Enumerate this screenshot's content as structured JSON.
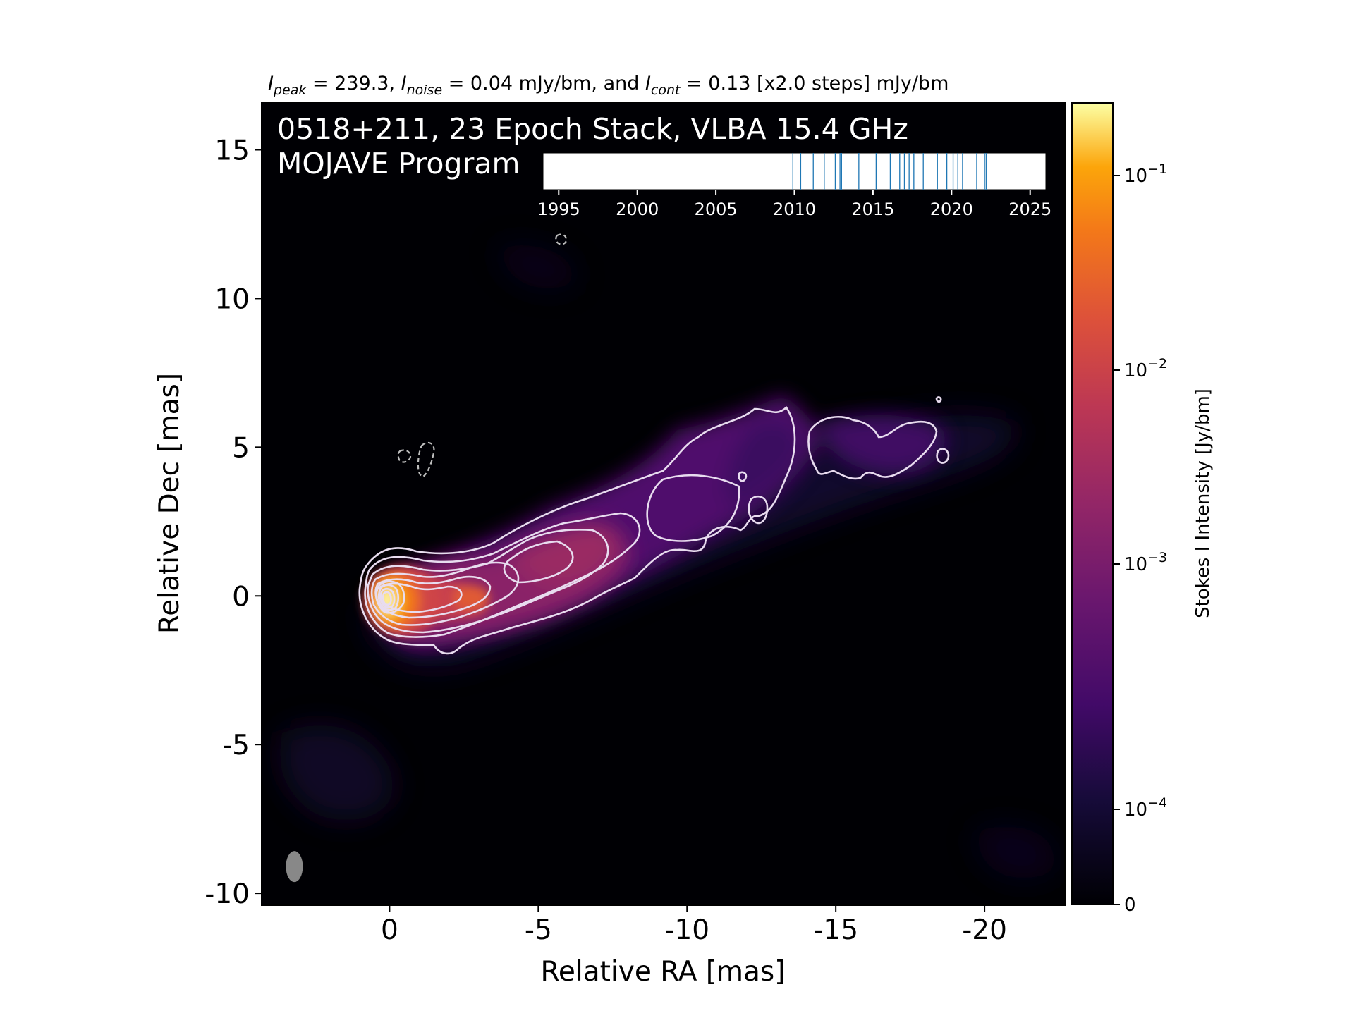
{
  "chart_data": {
    "type": "heatmap",
    "subtitle": {
      "peak_sym": "I",
      "peak_sub": "peak",
      "peak_val": " = 239.3, ",
      "noise_sym": "I",
      "noise_sub": "noise",
      "noise_val": " = 0.04 mJy/bm, and ",
      "cont_sym": "I",
      "cont_sub": "cont",
      "cont_val": " = 0.13 [x2.0 steps] mJy/bm"
    },
    "title_line1": "0518+211, 23 Epoch Stack, VLBA 15.4 GHz",
    "title_line2": "MOJAVE Program",
    "xlabel": "Relative RA [mas]",
    "ylabel": "Relative Dec [mas]",
    "xlim": [
      4.3,
      -22.7
    ],
    "ylim": [
      -10.4,
      16.6
    ],
    "x_ticks": [
      0,
      -5,
      -10,
      -15,
      -20
    ],
    "x_tick_labels": [
      "0",
      "-5",
      "-10",
      "-15",
      "-20"
    ],
    "y_ticks": [
      -10,
      -5,
      0,
      5,
      10,
      15
    ],
    "y_tick_labels": [
      "-10",
      "-5",
      "0",
      "5",
      "10",
      "15"
    ],
    "colorbar": {
      "label": "Stokes I Intensity [Jy/bm]",
      "scale": "log",
      "ticks": [
        0,
        0.0001,
        0.001,
        0.01,
        0.1
      ],
      "tick_labels": [
        {
          "base": "0",
          "exp": ""
        },
        {
          "base": "10",
          "exp": "−4"
        },
        {
          "base": "10",
          "exp": "−3"
        },
        {
          "base": "10",
          "exp": "−2"
        },
        {
          "base": "10",
          "exp": "−1"
        }
      ],
      "colormap": "inferno"
    },
    "epoch_timeline": {
      "xlim": [
        1994,
        2026
      ],
      "ticks": [
        1995,
        2000,
        2005,
        2010,
        2015,
        2020,
        2025
      ],
      "tick_labels": [
        "1995",
        "2000",
        "2005",
        "2010",
        "2015",
        "2020",
        "2025"
      ],
      "epochs": [
        2009.9,
        2010.4,
        2011.2,
        2011.9,
        2012.6,
        2012.9,
        2013.0,
        2014.1,
        2015.2,
        2016.1,
        2016.7,
        2017.0,
        2017.3,
        2017.6,
        2018.2,
        2019.1,
        2019.7,
        2020.1,
        2020.4,
        2020.7,
        2021.6,
        2022.1,
        2022.2
      ],
      "epoch_color": "#1f77b4"
    },
    "jet": {
      "core": [
        0,
        0
      ],
      "position_angle_deg": -67,
      "extent_mas": [
        0,
        -21
      ],
      "peak_jy_per_beam": 0.2393
    },
    "beam": {
      "center": [
        3.2,
        -9.1
      ]
    },
    "colors": {
      "background": "#000004",
      "contour": "#e8dcef",
      "beam": "#888888"
    }
  }
}
